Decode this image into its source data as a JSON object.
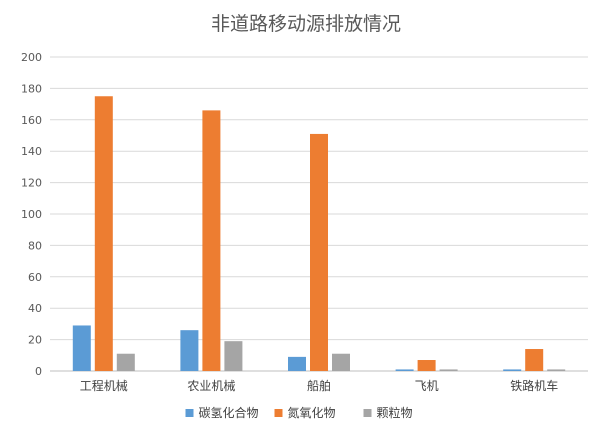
{
  "chart_data": {
    "type": "bar",
    "title": "非道路移动源排放情况",
    "categories": [
      "工程机械",
      "农业机械",
      "船舶",
      "飞机",
      "铁路机车"
    ],
    "series": [
      {
        "name": "碳氢化合物",
        "color": "#5b9bd5",
        "values": [
          29,
          26,
          9,
          1,
          1
        ]
      },
      {
        "name": "氮氧化物",
        "color": "#ed7d31",
        "values": [
          175,
          166,
          151,
          7,
          14
        ]
      },
      {
        "name": "颗粒物",
        "color": "#a5a5a5",
        "values": [
          11,
          19,
          11,
          1,
          1
        ]
      }
    ],
    "ylim": [
      0,
      200
    ],
    "yticks": [
      0,
      20,
      40,
      60,
      80,
      100,
      120,
      140,
      160,
      180,
      200
    ],
    "grid": true,
    "legend_position": "bottom"
  }
}
